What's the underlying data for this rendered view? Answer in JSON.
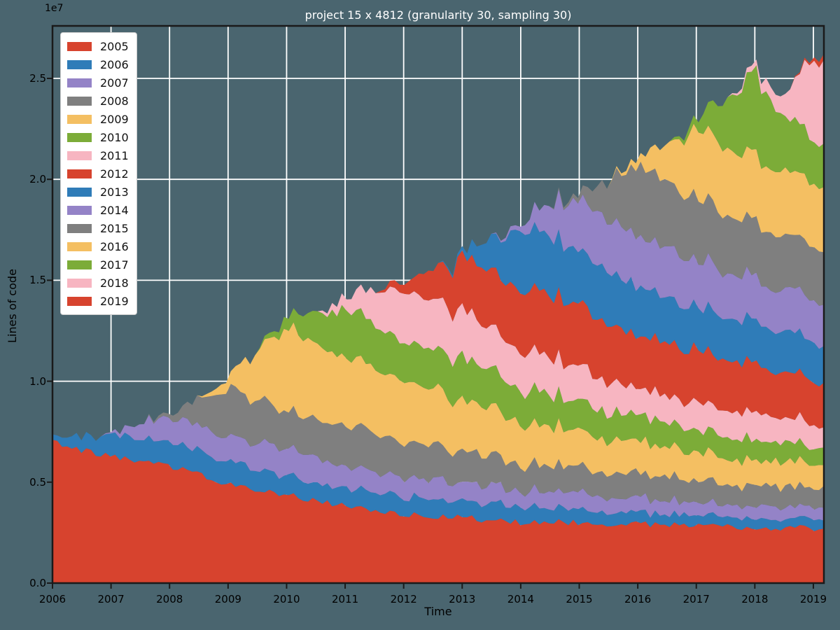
{
  "title": "project 15 x 4812 (granularity 30, sampling 30)",
  "axes": {
    "xlabel": "Time",
    "ylabel": "Lines of code",
    "offset_text": "1e7",
    "x_tick_labels": [
      "2006",
      "2007",
      "2008",
      "2009",
      "2010",
      "2011",
      "2012",
      "2013",
      "2014",
      "2015",
      "2016",
      "2017",
      "2018",
      "2019"
    ],
    "y_tick_labels": [
      "0.0",
      "0.5",
      "1.0",
      "1.5",
      "2.0",
      "2.5"
    ]
  },
  "colors": {
    "background": "#4a656f",
    "grid": "#ffffff",
    "spine": "#1a1a1a",
    "title_text": "#ffffff",
    "axis_text": "#000000",
    "legend_bg": "#ffffff",
    "cycle": [
      "#d7432e",
      "#2f7cb8",
      "#9483c7",
      "#7f7f7f",
      "#f4bf62",
      "#7cac38",
      "#f7b5c1"
    ]
  },
  "legend": {
    "entries": [
      {
        "label": "2005",
        "color": "#d7432e"
      },
      {
        "label": "2006",
        "color": "#2f7cb8"
      },
      {
        "label": "2007",
        "color": "#9483c7"
      },
      {
        "label": "2008",
        "color": "#7f7f7f"
      },
      {
        "label": "2009",
        "color": "#f4bf62"
      },
      {
        "label": "2010",
        "color": "#7cac38"
      },
      {
        "label": "2011",
        "color": "#f7b5c1"
      },
      {
        "label": "2012",
        "color": "#d7432e"
      },
      {
        "label": "2013",
        "color": "#2f7cb8"
      },
      {
        "label": "2014",
        "color": "#9483c7"
      },
      {
        "label": "2015",
        "color": "#7f7f7f"
      },
      {
        "label": "2016",
        "color": "#f4bf62"
      },
      {
        "label": "2017",
        "color": "#7cac38"
      },
      {
        "label": "2018",
        "color": "#f7b5c1"
      },
      {
        "label": "2019",
        "color": "#d7432e"
      }
    ]
  },
  "chart_data": {
    "type": "area",
    "stacked": true,
    "title": "project 15 x 4812 (granularity 30, sampling 30)",
    "xlabel": "Time",
    "ylabel": "Lines of code",
    "unit_scale": 10000000,
    "unit_label": "1e7",
    "xlim": [
      2006,
      2019.18
    ],
    "ylim": [
      0,
      2.76
    ],
    "x_ticks": [
      2006,
      2007,
      2008,
      2009,
      2010,
      2011,
      2012,
      2013,
      2014,
      2015,
      2016,
      2017,
      2018,
      2019
    ],
    "y_ticks": [
      0,
      0.5,
      1.0,
      1.5,
      2.0,
      2.5
    ],
    "grid": true,
    "legend_position": "upper left",
    "jitter_amplitude": 0.016,
    "x": [
      2006,
      2006.5,
      2007,
      2007.5,
      2008,
      2008.5,
      2009,
      2009.5,
      2010,
      2010.5,
      2011,
      2011.5,
      2012,
      2012.5,
      2013,
      2013.5,
      2014,
      2014.5,
      2015,
      2015.5,
      2016,
      2016.5,
      2017,
      2017.5,
      2018,
      2018.5,
      2019,
      2019.15
    ],
    "series": [
      {
        "name": "2005",
        "color": "#d7432e",
        "values": [
          0.7,
          0.66,
          0.63,
          0.6,
          0.58,
          0.535,
          0.49,
          0.462,
          0.44,
          0.41,
          0.38,
          0.36,
          0.342,
          0.332,
          0.324,
          0.312,
          0.302,
          0.302,
          0.302,
          0.296,
          0.291,
          0.287,
          0.283,
          0.28,
          0.278,
          0.275,
          0.272,
          0.272
        ]
      },
      {
        "name": "2006",
        "color": "#2f7cb8",
        "values": [
          0.025,
          0.07,
          0.111,
          0.111,
          0.111,
          0.111,
          0.111,
          0.105,
          0.098,
          0.09,
          0.084,
          0.088,
          0.093,
          0.088,
          0.083,
          0.08,
          0.077,
          0.072,
          0.068,
          0.061,
          0.055,
          0.052,
          0.05,
          0.048,
          0.046,
          0.047,
          0.048,
          0.048
        ]
      },
      {
        "name": "2007",
        "color": "#9483c7",
        "values": [
          0,
          0,
          0.005,
          0.07,
          0.129,
          0.125,
          0.121,
          0.13,
          0.138,
          0.124,
          0.111,
          0.106,
          0.102,
          0.097,
          0.093,
          0.088,
          0.084,
          0.082,
          0.08,
          0.075,
          0.07,
          0.067,
          0.065,
          0.062,
          0.059,
          0.059,
          0.059,
          0.059
        ]
      },
      {
        "name": "2008",
        "color": "#7f7f7f",
        "values": [
          0,
          0,
          0,
          0,
          0.02,
          0.13,
          0.24,
          0.212,
          0.185,
          0.194,
          0.203,
          0.189,
          0.175,
          0.166,
          0.157,
          0.147,
          0.138,
          0.131,
          0.124,
          0.122,
          0.121,
          0.116,
          0.111,
          0.106,
          0.102,
          0.099,
          0.097,
          0.097
        ]
      },
      {
        "name": "2009",
        "color": "#f4bf62",
        "values": [
          0,
          0,
          0,
          0,
          0,
          0,
          0.06,
          0.25,
          0.408,
          0.37,
          0.333,
          0.32,
          0.306,
          0.278,
          0.25,
          0.231,
          0.213,
          0.194,
          0.175,
          0.166,
          0.157,
          0.148,
          0.139,
          0.132,
          0.126,
          0.121,
          0.116,
          0.116
        ]
      },
      {
        "name": "2010",
        "color": "#7cac38",
        "values": [
          0,
          0,
          0,
          0,
          0,
          0,
          0,
          0,
          0.055,
          0.15,
          0.241,
          0.213,
          0.185,
          0.198,
          0.212,
          0.189,
          0.167,
          0.157,
          0.148,
          0.138,
          0.129,
          0.122,
          0.116,
          0.108,
          0.101,
          0.097,
          0.093,
          0.093
        ]
      },
      {
        "name": "2011",
        "color": "#f7b5c1",
        "values": [
          0,
          0,
          0,
          0,
          0,
          0,
          0,
          0,
          0,
          0,
          0.055,
          0.16,
          0.259,
          0.245,
          0.232,
          0.213,
          0.194,
          0.18,
          0.167,
          0.153,
          0.139,
          0.136,
          0.133,
          0.133,
          0.134,
          0.122,
          0.111,
          0.111
        ]
      },
      {
        "name": "2012",
        "color": "#d7432e",
        "values": [
          0,
          0,
          0,
          0,
          0,
          0,
          0,
          0,
          0,
          0,
          0,
          0,
          0.046,
          0.15,
          0.259,
          0.285,
          0.305,
          0.308,
          0.305,
          0.293,
          0.259,
          0.259,
          0.26,
          0.25,
          0.237,
          0.224,
          0.212,
          0.212
        ]
      },
      {
        "name": "2013",
        "color": "#2f7cb8",
        "values": [
          0,
          0,
          0,
          0,
          0,
          0,
          0,
          0,
          0,
          0,
          0,
          0,
          0,
          0,
          0.018,
          0.16,
          0.296,
          0.283,
          0.269,
          0.255,
          0.241,
          0.226,
          0.212,
          0.208,
          0.203,
          0.199,
          0.195,
          0.195
        ]
      },
      {
        "name": "2014",
        "color": "#9483c7",
        "values": [
          0,
          0,
          0,
          0,
          0,
          0,
          0,
          0,
          0,
          0,
          0,
          0,
          0,
          0,
          0,
          0,
          0.028,
          0.15,
          0.259,
          0.255,
          0.25,
          0.241,
          0.232,
          0.222,
          0.213,
          0.208,
          0.203,
          0.203
        ]
      },
      {
        "name": "2015",
        "color": "#7f7f7f",
        "values": [
          0,
          0,
          0,
          0,
          0,
          0,
          0,
          0,
          0,
          0,
          0,
          0,
          0,
          0,
          0,
          0,
          0,
          0,
          0.033,
          0.19,
          0.351,
          0.328,
          0.305,
          0.291,
          0.277,
          0.273,
          0.269,
          0.269
        ]
      },
      {
        "name": "2016",
        "color": "#f4bf62",
        "values": [
          0,
          0,
          0,
          0,
          0,
          0,
          0,
          0,
          0,
          0,
          0,
          0,
          0,
          0,
          0,
          0,
          0,
          0,
          0,
          0,
          0.037,
          0.19,
          0.352,
          0.338,
          0.324,
          0.319,
          0.314,
          0.314
        ]
      },
      {
        "name": "2017",
        "color": "#7cac38",
        "values": [
          0,
          0,
          0,
          0,
          0,
          0,
          0,
          0,
          0,
          0,
          0,
          0,
          0,
          0,
          0,
          0,
          0,
          0,
          0,
          0,
          0,
          0,
          0.042,
          0.23,
          0.417,
          0.27,
          0.222,
          0.21
        ]
      },
      {
        "name": "2018",
        "color": "#f7b5c1",
        "values": [
          0,
          0,
          0,
          0,
          0,
          0,
          0,
          0,
          0,
          0,
          0,
          0,
          0,
          0,
          0,
          0,
          0,
          0,
          0,
          0,
          0,
          0,
          0,
          0,
          0.031,
          0.1,
          0.398,
          0.41
        ]
      },
      {
        "name": "2019",
        "color": "#d7432e",
        "values": [
          0,
          0,
          0,
          0,
          0,
          0,
          0,
          0,
          0,
          0,
          0,
          0,
          0,
          0,
          0,
          0,
          0,
          0,
          0,
          0,
          0,
          0,
          0,
          0,
          0,
          0,
          0.013,
          0.03
        ]
      }
    ]
  }
}
